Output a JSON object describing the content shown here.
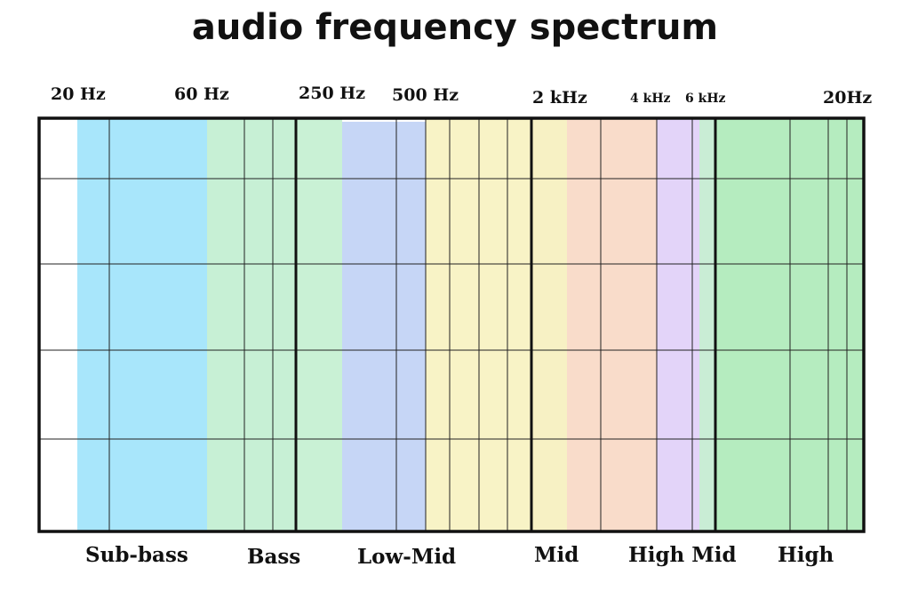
{
  "title": "audio frequency spectrum",
  "frequency_markers": [
    {
      "label": "20 Hz"
    },
    {
      "label": "60 Hz"
    },
    {
      "label": "250 Hz"
    },
    {
      "label": "500 Hz"
    },
    {
      "label": "2 kHz"
    },
    {
      "label": "4 kHz"
    },
    {
      "label": "6 kHz"
    },
    {
      "label": "20Hz"
    }
  ],
  "bands": [
    {
      "name": "Sub-bass",
      "color": "#a8e6fb"
    },
    {
      "name": "Bass",
      "color": "#c2f0d0"
    },
    {
      "name": "Low-Mid",
      "color": "#c6d6f6"
    },
    {
      "name": "Mid",
      "color": "#f7f1c4"
    },
    {
      "name": "High Mid",
      "color": "#e3d4f9"
    },
    {
      "name": "High",
      "color": "#b5ecbf"
    }
  ],
  "extra_colors": {
    "mid_low": "#f8f3c6",
    "mid_high": "#f9dcca",
    "bass_low": "#c7f0d5",
    "bass_high": "#c9f1d5",
    "highmid_gap": "#c9edd5"
  }
}
